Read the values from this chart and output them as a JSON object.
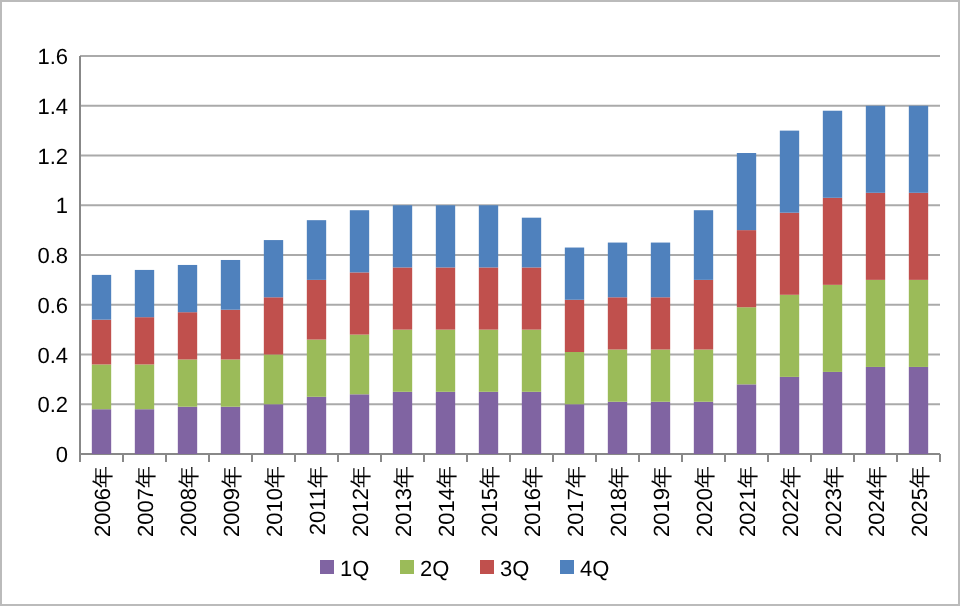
{
  "chart_data": {
    "type": "bar",
    "stacked": true,
    "categories": [
      "2006年",
      "2007年",
      "2008年",
      "2009年",
      "2010年",
      "2011年",
      "2012年",
      "2013年",
      "2014年",
      "2015年",
      "2016年",
      "2017年",
      "2018年",
      "2019年",
      "2020年",
      "2021年",
      "2022年",
      "2023年",
      "2024年",
      "2025年"
    ],
    "series": [
      {
        "name": "1Q",
        "color": "#8064a2",
        "values": [
          0.18,
          0.18,
          0.19,
          0.19,
          0.2,
          0.23,
          0.24,
          0.25,
          0.25,
          0.25,
          0.25,
          0.2,
          0.21,
          0.21,
          0.21,
          0.28,
          0.31,
          0.33,
          0.35,
          0.35
        ]
      },
      {
        "name": "2Q",
        "color": "#9bbb59",
        "values": [
          0.18,
          0.18,
          0.19,
          0.19,
          0.2,
          0.23,
          0.24,
          0.25,
          0.25,
          0.25,
          0.25,
          0.21,
          0.21,
          0.21,
          0.21,
          0.31,
          0.33,
          0.35,
          0.35,
          0.35
        ]
      },
      {
        "name": "3Q",
        "color": "#c0504d",
        "values": [
          0.18,
          0.19,
          0.19,
          0.2,
          0.23,
          0.24,
          0.25,
          0.25,
          0.25,
          0.25,
          0.25,
          0.21,
          0.21,
          0.21,
          0.28,
          0.31,
          0.33,
          0.35,
          0.35,
          0.35
        ]
      },
      {
        "name": "4Q",
        "color": "#4f81bd",
        "values": [
          0.18,
          0.19,
          0.19,
          0.2,
          0.23,
          0.24,
          0.25,
          0.25,
          0.25,
          0.25,
          0.2,
          0.21,
          0.22,
          0.22,
          0.28,
          0.31,
          0.33,
          0.35,
          0.35,
          0.35
        ]
      }
    ],
    "ylim": [
      0,
      1.6
    ],
    "yticks": [
      0,
      0.2,
      0.4,
      0.6,
      0.8,
      1,
      1.2,
      1.4,
      1.6
    ],
    "grid": "y",
    "legend": "bottom"
  }
}
